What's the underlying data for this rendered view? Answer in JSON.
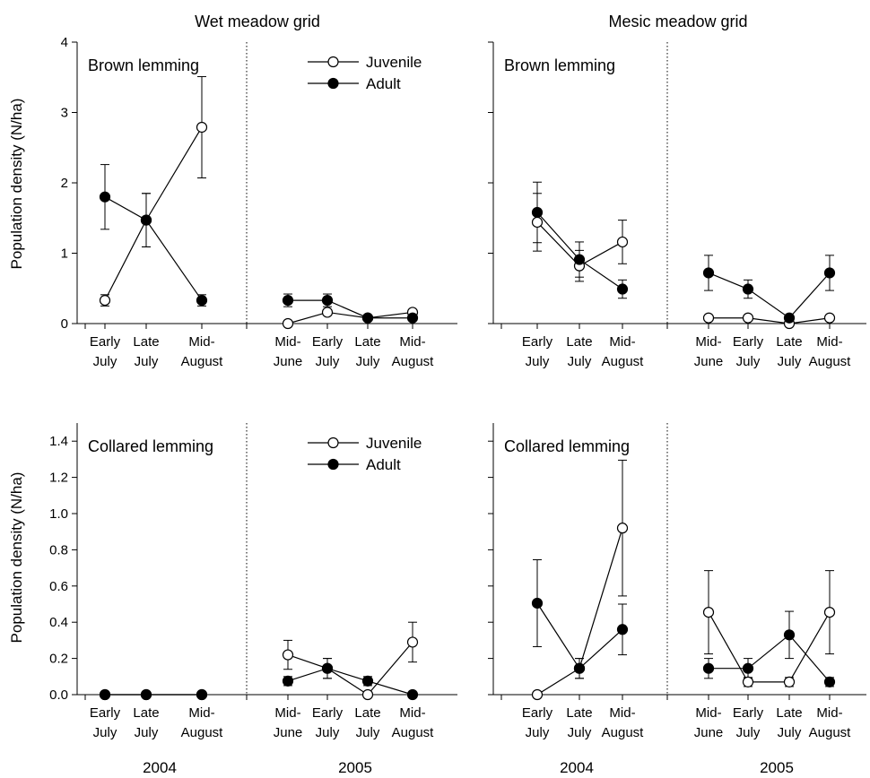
{
  "column_titles": [
    "Wet meadow grid",
    "Mesic meadow grid"
  ],
  "year_labels": [
    "2004",
    "2005"
  ],
  "chart_data": [
    {
      "id": "wet-brown",
      "type": "line",
      "panel_label": "Brown lemming",
      "ylabel": "Population density (N/ha)",
      "ylim": [
        0,
        4
      ],
      "yticks": [
        "0",
        "1",
        "2",
        "3",
        "4"
      ],
      "legend": {
        "shown": true,
        "placement": "top-right",
        "entries": [
          "Juvenile",
          "Adult"
        ]
      },
      "categories": [
        [
          "Early",
          "July"
        ],
        [
          "Late",
          "July"
        ],
        [
          "Mid-",
          "August"
        ],
        [
          "Mid-",
          "June"
        ],
        [
          "Early",
          "July"
        ],
        [
          "Late",
          "July"
        ],
        [
          "Mid-",
          "August"
        ]
      ],
      "series": [
        {
          "name": "Juvenile",
          "marker": "open",
          "values": [
            0.33,
            1.47,
            2.79,
            0.0,
            0.16,
            0.08,
            0.16
          ],
          "errors": [
            0.08,
            0.38,
            0.72,
            0,
            0,
            0,
            0
          ]
        },
        {
          "name": "Adult",
          "marker": "filled",
          "values": [
            1.8,
            1.47,
            0.33,
            0.33,
            0.33,
            0.08,
            0.08
          ],
          "errors": [
            0.46,
            0.38,
            0.08,
            0.09,
            0.09,
            0,
            0
          ]
        }
      ]
    },
    {
      "id": "mesic-brown",
      "type": "line",
      "panel_label": "Brown lemming",
      "ylabel": "",
      "ylim": [
        0,
        4
      ],
      "yticks": [],
      "legend": {
        "shown": false
      },
      "categories": [
        [
          "Early",
          "July"
        ],
        [
          "Late",
          "July"
        ],
        [
          "Mid-",
          "August"
        ],
        [
          "Mid-",
          "June"
        ],
        [
          "Early",
          "July"
        ],
        [
          "Late",
          "July"
        ],
        [
          "Mid-",
          "August"
        ]
      ],
      "series": [
        {
          "name": "Juvenile",
          "marker": "open",
          "values": [
            1.44,
            0.82,
            1.16,
            0.08,
            0.08,
            0.0,
            0.08
          ],
          "errors": [
            0.41,
            0.22,
            0.31,
            0,
            0,
            0,
            0
          ]
        },
        {
          "name": "Adult",
          "marker": "filled",
          "values": [
            1.58,
            0.91,
            0.49,
            0.72,
            0.49,
            0.08,
            0.72
          ],
          "errors": [
            0.43,
            0.25,
            0.13,
            0.25,
            0.13,
            0,
            0.25
          ]
        }
      ]
    },
    {
      "id": "wet-collared",
      "type": "line",
      "panel_label": "Collared lemming",
      "ylabel": "Population density (N/ha)",
      "ylim": [
        0,
        1.5
      ],
      "yticks": [
        "0.0",
        "0.2",
        "0.4",
        "0.6",
        "0.8",
        "1.0",
        "1.2",
        "1.4"
      ],
      "legend": {
        "shown": true,
        "placement": "top-right",
        "entries": [
          "Juvenile",
          "Adult"
        ]
      },
      "categories": [
        [
          "Early",
          "July"
        ],
        [
          "Late",
          "July"
        ],
        [
          "Mid-",
          "August"
        ],
        [
          "Mid-",
          "June"
        ],
        [
          "Early",
          "July"
        ],
        [
          "Late",
          "July"
        ],
        [
          "Mid-",
          "August"
        ]
      ],
      "series": [
        {
          "name": "Juvenile",
          "marker": "open",
          "values": [
            0.0,
            0.0,
            0.0,
            0.22,
            0.145,
            0.0,
            0.29
          ],
          "errors": [
            0,
            0,
            0,
            0.08,
            0.055,
            0,
            0.11
          ]
        },
        {
          "name": "Adult",
          "marker": "filled",
          "values": [
            0.0,
            0.0,
            0.0,
            0.075,
            0.145,
            0.075,
            0.0
          ],
          "errors": [
            0,
            0,
            0,
            0.025,
            0.055,
            0.025,
            0
          ]
        }
      ]
    },
    {
      "id": "mesic-collared",
      "type": "line",
      "panel_label": "Collared lemming",
      "ylabel": "",
      "ylim": [
        0,
        1.5
      ],
      "yticks": [],
      "legend": {
        "shown": false
      },
      "categories": [
        [
          "Early",
          "July"
        ],
        [
          "Late",
          "July"
        ],
        [
          "Mid-",
          "August"
        ],
        [
          "Mid-",
          "June"
        ],
        [
          "Early",
          "July"
        ],
        [
          "Late",
          "July"
        ],
        [
          "Mid-",
          "August"
        ]
      ],
      "series": [
        {
          "name": "Juvenile",
          "marker": "open",
          "values": [
            0.0,
            0.145,
            0.92,
            0.455,
            0.07,
            0.07,
            0.455
          ],
          "errors": [
            0,
            0.055,
            0.375,
            0.23,
            0.025,
            0.025,
            0.23
          ]
        },
        {
          "name": "Adult",
          "marker": "filled",
          "values": [
            0.505,
            0.145,
            0.36,
            0.145,
            0.145,
            0.33,
            0.07
          ],
          "errors": [
            0.24,
            0.055,
            0.14,
            0.055,
            0.055,
            0.13,
            0.025
          ]
        }
      ]
    }
  ]
}
